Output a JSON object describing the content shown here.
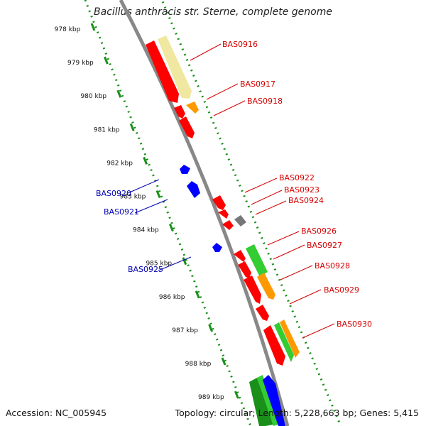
{
  "title": "Bacillus anthracis str. Sterne, complete genome",
  "footer": {
    "accession": "Accession: NC_005945",
    "summary": "Topology: circular; Length: 5,228,663 bp; Genes: 5,415"
  },
  "colors": {
    "red": "#ff0000",
    "yellow": "#f0e8a0",
    "orange": "#ff9900",
    "green": "#33cc33",
    "dark_green": "#1a8f1a",
    "blue": "#0000ff",
    "gray": "#777777",
    "backbone": "#888888",
    "tick": "#1a8f1a",
    "label_forward": "#d40000",
    "label_reverse": "#0000b0"
  },
  "kbp_labels": [
    "978 kbp",
    "979 kbp",
    "980 kbp",
    "981 kbp",
    "982 kbp",
    "983 kbp",
    "984 kbp",
    "985 kbp",
    "986 kbp",
    "987 kbp",
    "988 kbp",
    "989 kbp"
  ],
  "gene_labels": [
    {
      "text": "BAS0916",
      "strand": "forward"
    },
    {
      "text": "BAS0917",
      "strand": "forward"
    },
    {
      "text": "BAS0918",
      "strand": "forward"
    },
    {
      "text": "BAS0920",
      "strand": "reverse"
    },
    {
      "text": "BAS0921",
      "strand": "reverse"
    },
    {
      "text": "BAS0922",
      "strand": "forward"
    },
    {
      "text": "BAS0923",
      "strand": "forward"
    },
    {
      "text": "BAS0924",
      "strand": "forward"
    },
    {
      "text": "BAS0925",
      "strand": "reverse"
    },
    {
      "text": "BAS0926",
      "strand": "forward"
    },
    {
      "text": "BAS0927",
      "strand": "forward"
    },
    {
      "text": "BAS0928",
      "strand": "forward"
    },
    {
      "text": "BAS0929",
      "strand": "forward"
    },
    {
      "text": "BAS0930",
      "strand": "forward"
    }
  ]
}
